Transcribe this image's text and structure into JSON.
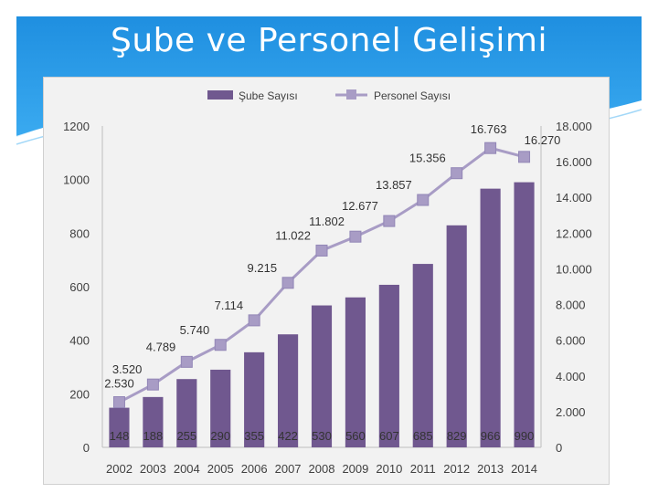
{
  "slide": {
    "title": "Şube ve Personel Gelişimi",
    "colors": {
      "top_band": "#2b9fe6",
      "accent": "#45b4f0"
    }
  },
  "chart_data": {
    "type": "bar+line",
    "title": "",
    "categories": [
      "2002",
      "2003",
      "2004",
      "2005",
      "2006",
      "2007",
      "2008",
      "2009",
      "2010",
      "2011",
      "2012",
      "2013",
      "2014"
    ],
    "series": [
      {
        "name": "Şube Sayısı",
        "type": "bar",
        "axis": "left",
        "color": "#70588f",
        "values": [
          148,
          188,
          255,
          290,
          355,
          422,
          530,
          560,
          607,
          685,
          829,
          966,
          990
        ],
        "labels": [
          "148",
          "188",
          "255",
          "290",
          "355",
          "422",
          "530",
          "560",
          "607",
          "685",
          "829",
          "966",
          "990"
        ]
      },
      {
        "name": "Personel Sayısı",
        "type": "line",
        "axis": "right",
        "color": "#a89cc5",
        "values": [
          2530,
          3520,
          4789,
          5740,
          7114,
          9215,
          11022,
          11802,
          12677,
          13857,
          15356,
          16763,
          16270
        ],
        "labels": [
          "2.530",
          "3.520",
          "4.789",
          "5.740",
          "7.114",
          "9.215",
          "11.022",
          "11.802",
          "12.677",
          "13.857",
          "15.356",
          "16.763",
          "16.270"
        ]
      }
    ],
    "y_left": {
      "min": 0,
      "max": 1200,
      "ticks": [
        "0",
        "200",
        "400",
        "600",
        "800",
        "1000",
        "1200"
      ]
    },
    "y_right": {
      "min": 0,
      "max": 18000,
      "ticks": [
        "0",
        "2.000",
        "4.000",
        "6.000",
        "8.000",
        "10.000",
        "12.000",
        "14.000",
        "16.000",
        "18.000"
      ]
    },
    "legend": {
      "placement": "top"
    },
    "grid": false
  }
}
